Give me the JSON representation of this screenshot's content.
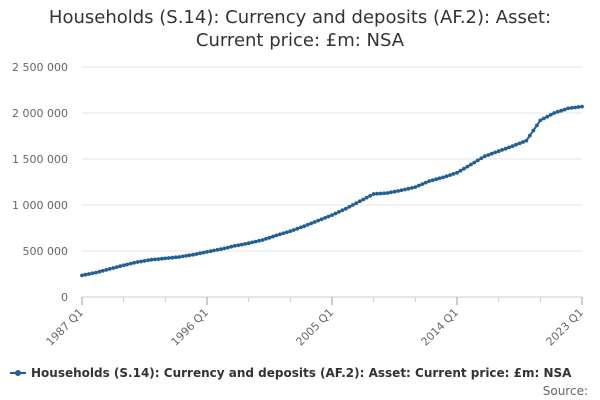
{
  "chart_data": {
    "type": "line",
    "title_lines": [
      "Households (S.14): Currency and deposits (AF.2): Asset:",
      "Current price: £m: NSA"
    ],
    "xlabel": "",
    "ylabel": "",
    "x_tick_labels": [
      "1987 Q1",
      "1996 Q1",
      "2005 Q1",
      "2014 Q1",
      "2023 Q1"
    ],
    "y_tick_labels": [
      "0",
      "500 000",
      "1 000 000",
      "1 500 000",
      "2 000 000",
      "2 500 000"
    ],
    "y_ticks": [
      0,
      500000,
      1000000,
      1500000,
      2000000,
      2500000
    ],
    "ylim": [
      0,
      2500000
    ],
    "x_range": [
      "1987 Q1",
      "2023 Q1"
    ],
    "grid": "horizontal",
    "legend_position": "bottom",
    "series": [
      {
        "name": "Households (S.14): Currency and deposits (AF.2): Asset: Current price: £m: NSA",
        "color": "#206095",
        "x": [
          "1987",
          "1988",
          "1989",
          "1990",
          "1991",
          "1992",
          "1993",
          "1994",
          "1995",
          "1996",
          "1997",
          "1998",
          "1999",
          "2000",
          "2001",
          "2002",
          "2003",
          "2004",
          "2005",
          "2006",
          "2007",
          "2008",
          "2009",
          "2010",
          "2011",
          "2012",
          "2013",
          "2014",
          "2015",
          "2016",
          "2017",
          "2018",
          "2019",
          "2020",
          "2021",
          "2022",
          "2023"
        ],
        "values": [
          235000,
          265000,
          305000,
          345000,
          380000,
          405000,
          420000,
          435000,
          460000,
          490000,
          520000,
          555000,
          585000,
          620000,
          670000,
          715000,
          770000,
          830000,
          890000,
          960000,
          1040000,
          1120000,
          1130000,
          1160000,
          1195000,
          1260000,
          1300000,
          1350000,
          1440000,
          1530000,
          1585000,
          1640000,
          1700000,
          1920000,
          2000000,
          2050000,
          2070000
        ]
      }
    ]
  },
  "source_label": "Source:"
}
